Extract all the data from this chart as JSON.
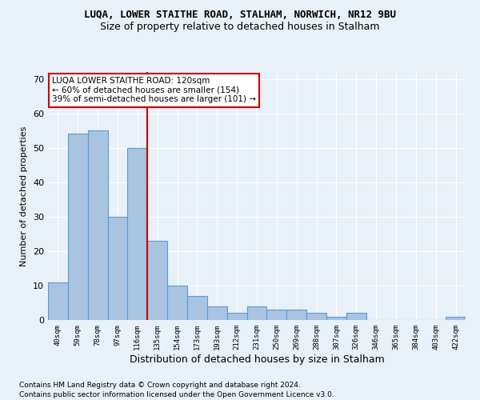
{
  "title": "LUQA, LOWER STAITHE ROAD, STALHAM, NORWICH, NR12 9BU",
  "subtitle": "Size of property relative to detached houses in Stalham",
  "xlabel": "Distribution of detached houses by size in Stalham",
  "ylabel": "Number of detached properties",
  "footnote1": "Contains HM Land Registry data © Crown copyright and database right 2024.",
  "footnote2": "Contains public sector information licensed under the Open Government Licence v3.0.",
  "categories": [
    "40sqm",
    "59sqm",
    "78sqm",
    "97sqm",
    "116sqm",
    "135sqm",
    "154sqm",
    "173sqm",
    "193sqm",
    "212sqm",
    "231sqm",
    "250sqm",
    "269sqm",
    "288sqm",
    "307sqm",
    "326sqm",
    "346sqm",
    "365sqm",
    "384sqm",
    "403sqm",
    "422sqm"
  ],
  "values": [
    11,
    54,
    55,
    30,
    50,
    23,
    10,
    7,
    4,
    2,
    4,
    3,
    3,
    2,
    1,
    2,
    0,
    0,
    0,
    0,
    1
  ],
  "bar_color": "#a8c4e0",
  "bar_edge_color": "#5b9bd5",
  "background_color": "#e8f0f8",
  "grid_color": "#ffffff",
  "red_line_x": 4.5,
  "annotation_text": "LUQA LOWER STAITHE ROAD: 120sqm\n← 60% of detached houses are smaller (154)\n39% of semi-detached houses are larger (101) →",
  "annotation_box_color": "#ffffff",
  "annotation_box_edge": "#cc0000",
  "ylim": [
    0,
    72
  ],
  "yticks": [
    0,
    10,
    20,
    30,
    40,
    50,
    60,
    70
  ]
}
